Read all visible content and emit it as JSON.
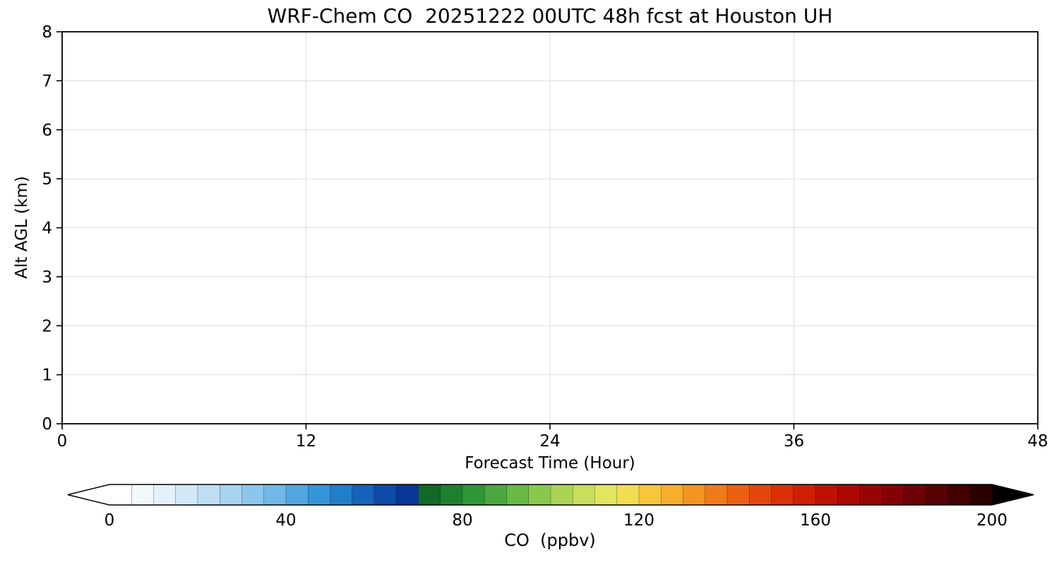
{
  "chart_data": {
    "type": "heatmap",
    "title": "WRF-Chem CO  20251222 00UTC 48h fcst at Houston UH",
    "xlabel": "Forecast Time (Hour)",
    "ylabel": "Alt AGL (km)",
    "xlim": [
      0,
      48
    ],
    "ylim": [
      0,
      8
    ],
    "xtick_values": [
      0,
      12,
      24,
      36,
      48
    ],
    "xtick_labels": [
      "0",
      "12",
      "24",
      "36",
      "48"
    ],
    "ytick_values": [
      0,
      1,
      2,
      3,
      4,
      5,
      6,
      7,
      8
    ],
    "ytick_labels": [
      "0",
      "1",
      "2",
      "3",
      "4",
      "5",
      "6",
      "7",
      "8"
    ],
    "grid": true,
    "grid_color": "#dcdcdc",
    "field_appearance": "uniform white plot area - no visible CO structure (values at or below lowest color bin)",
    "colorbar": {
      "label": "CO  (ppbv)",
      "tick_values": [
        0,
        40,
        80,
        120,
        160,
        200
      ],
      "tick_labels": [
        "0",
        "40",
        "80",
        "120",
        "160",
        "200"
      ],
      "vmin": 0,
      "vmax": 200,
      "bin_size": 5,
      "extend": "both",
      "under_color": "#ffffff",
      "over_color": "#000000",
      "colors": [
        "#ffffff",
        "#f2f9fd",
        "#e4f1fa",
        "#d3e8f7",
        "#bfdef4",
        "#a8d3f0",
        "#8dc6ec",
        "#70b8e7",
        "#51a8e1",
        "#3495d9",
        "#217ecb",
        "#1563ba",
        "#0d4aaa",
        "#093699",
        "#106a26",
        "#1d8030",
        "#2f9638",
        "#4aa83e",
        "#68b945",
        "#8ac84d",
        "#abd454",
        "#c9de5a",
        "#e2e55e",
        "#f2dd50",
        "#f8c63b",
        "#f7ad2d",
        "#f49422",
        "#f07a19",
        "#ec6011",
        "#e4470b",
        "#da3106",
        "#cf1f04",
        "#bf1103",
        "#ac0803",
        "#980404",
        "#830205",
        "#6d0105",
        "#570104",
        "#420103",
        "#2b0101"
      ]
    }
  }
}
